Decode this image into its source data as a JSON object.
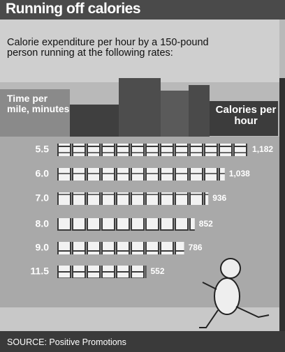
{
  "chart_data": {
    "type": "bar",
    "orientation": "horizontal",
    "title": "Running off calories",
    "subtitle": "Calorie expenditure per hour by a 150-pound person running at the following rates:",
    "y_label": "Time per mile, minutes",
    "value_label": "Calories per hour",
    "categories": [
      "5.5",
      "6.0",
      "7.0",
      "8.0",
      "9.0",
      "11.5"
    ],
    "values": [
      1182,
      1038,
      936,
      852,
      786,
      552
    ],
    "value_labels": [
      "1,182",
      "1,038",
      "936",
      "852",
      "786",
      "552"
    ],
    "color": "#f2f2f2",
    "source": "SOURCE: Positive Promotions"
  }
}
